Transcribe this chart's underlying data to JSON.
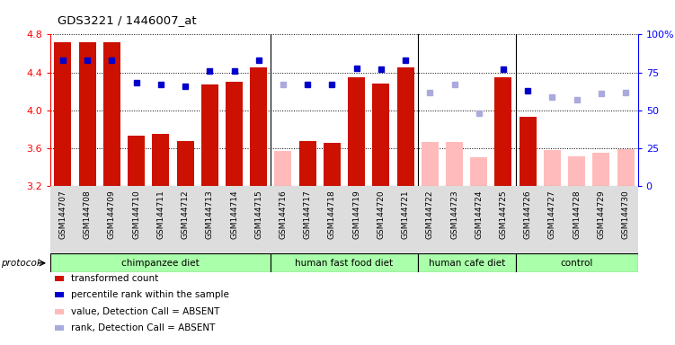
{
  "title": "GDS3221 / 1446007_at",
  "samples": [
    "GSM144707",
    "GSM144708",
    "GSM144709",
    "GSM144710",
    "GSM144711",
    "GSM144712",
    "GSM144713",
    "GSM144714",
    "GSM144715",
    "GSM144716",
    "GSM144717",
    "GSM144718",
    "GSM144719",
    "GSM144720",
    "GSM144721",
    "GSM144722",
    "GSM144723",
    "GSM144724",
    "GSM144725",
    "GSM144726",
    "GSM144727",
    "GSM144728",
    "GSM144729",
    "GSM144730"
  ],
  "values": [
    4.72,
    4.72,
    4.72,
    3.73,
    3.75,
    3.68,
    4.27,
    4.3,
    4.45,
    3.57,
    3.68,
    3.66,
    4.35,
    4.28,
    4.45,
    3.67,
    3.67,
    3.51,
    4.35,
    3.93,
    3.58,
    3.52,
    3.55,
    3.59
  ],
  "absent": [
    false,
    false,
    false,
    false,
    false,
    false,
    false,
    false,
    false,
    true,
    false,
    false,
    false,
    false,
    false,
    true,
    true,
    true,
    false,
    false,
    true,
    true,
    true,
    true
  ],
  "percentile": [
    83,
    83,
    83,
    68,
    67,
    66,
    76,
    76,
    83,
    67,
    67,
    67,
    78,
    77,
    83,
    62,
    67,
    48,
    77,
    63,
    59,
    57,
    61,
    62
  ],
  "absent_rank": [
    false,
    false,
    false,
    false,
    false,
    false,
    false,
    false,
    false,
    true,
    false,
    false,
    false,
    false,
    false,
    true,
    true,
    true,
    false,
    false,
    true,
    true,
    true,
    true
  ],
  "group_data": [
    {
      "label": "chimpanzee diet",
      "start": 0,
      "end": 9
    },
    {
      "label": "human fast food diet",
      "start": 9,
      "end": 15
    },
    {
      "label": "human cafe diet",
      "start": 15,
      "end": 19
    },
    {
      "label": "control",
      "start": 19,
      "end": 24
    }
  ],
  "ylim_left": [
    3.2,
    4.8
  ],
  "ylim_right": [
    0,
    100
  ],
  "bar_color_present": "#cc1100",
  "bar_color_absent": "#ffbbbb",
  "dot_color_present": "#0000cc",
  "dot_color_absent": "#aaaadd",
  "legend_items": [
    {
      "label": "transformed count",
      "color": "#cc1100"
    },
    {
      "label": "percentile rank within the sample",
      "color": "#0000cc"
    },
    {
      "label": "value, Detection Call = ABSENT",
      "color": "#ffbbbb"
    },
    {
      "label": "rank, Detection Call = ABSENT",
      "color": "#aaaadd"
    }
  ],
  "group_color": "#aaffaa",
  "xtick_bg": "#dddddd",
  "yticks_left": [
    3.2,
    3.6,
    4.0,
    4.4,
    4.8
  ],
  "yticks_right": [
    0,
    25,
    50,
    75,
    100
  ]
}
